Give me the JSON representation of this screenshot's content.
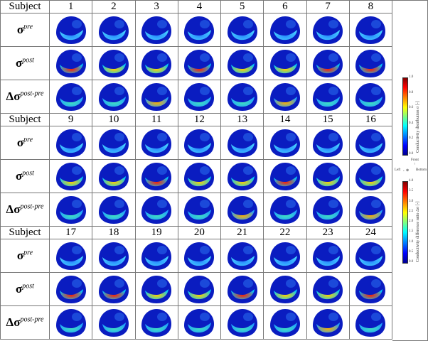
{
  "header_label": "Subject",
  "row_labels": [
    {
      "symbol": "σ",
      "prefix": "",
      "sup": "pre"
    },
    {
      "symbol": "σ",
      "prefix": "",
      "sup": "post"
    },
    {
      "symbol": "σ",
      "prefix": "Δ",
      "sup": "post-pre"
    }
  ],
  "blocks": [
    {
      "subjects": [
        "1",
        "2",
        "3",
        "4",
        "5",
        "6",
        "7",
        "8"
      ]
    },
    {
      "subjects": [
        "9",
        "10",
        "11",
        "12",
        "13",
        "14",
        "15",
        "16"
      ]
    },
    {
      "subjects": [
        "17",
        "18",
        "19",
        "20",
        "21",
        "22",
        "23",
        "24"
      ]
    }
  ],
  "colorbar_top": {
    "label": "Conductivity distribution σ [-]",
    "ticks": [
      "1.0",
      "0.8",
      "0.6",
      "0.4",
      "0.2",
      "0.0"
    ],
    "range": [
      0,
      1
    ]
  },
  "colorbar_bottom": {
    "label": "Conductivity difference ratio Δσ [-]",
    "ticks": [
      "4.0",
      "3.5",
      "3.0",
      "2.5",
      "2.0",
      "1.5",
      "1.0",
      "0.5",
      "0.0"
    ],
    "range": [
      0,
      4
    ]
  },
  "orientation": {
    "front": "Front",
    "left": "Left",
    "bottom": "Bottom"
  },
  "colormap": "jet"
}
